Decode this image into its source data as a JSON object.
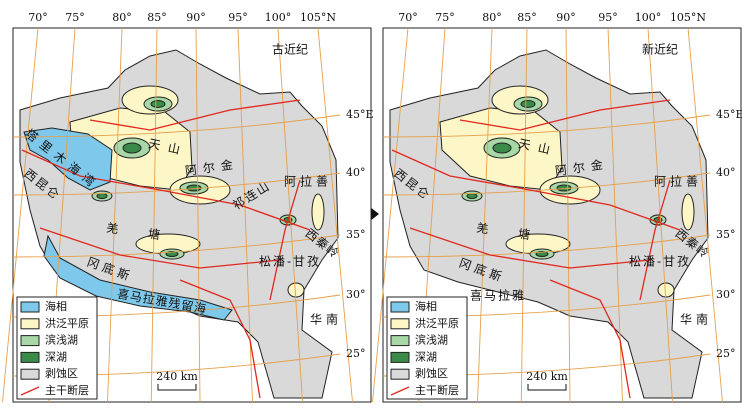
{
  "lon_labels": [
    "70°",
    "75°",
    "80°",
    "85°",
    "90°",
    "95°",
    "100°",
    "105°N"
  ],
  "lat_labels": [
    "45°E",
    "40°",
    "35°",
    "30°",
    "25°"
  ],
  "legend": [
    "海相",
    "洪泛平原",
    "滨浅湖",
    "深湖",
    "剥蚀区",
    "主干断层"
  ],
  "scale": "240 km",
  "panels": [
    {
      "title": "古近纪",
      "places": [
        "塔里木海湾",
        "天山",
        "阿尔金",
        "祁连山",
        "阿拉善",
        "西昆仑",
        "羌塘",
        "冈底斯",
        "松潘-甘孜",
        "西秦岭",
        "喜马拉雅残留海",
        "华南"
      ]
    },
    {
      "title": "新近纪",
      "places": [
        "天山",
        "阿尔金",
        "阿拉善",
        "西昆仑",
        "羌塘",
        "冈底斯",
        "松潘-甘孜",
        "西秦岭",
        "喜马拉雅",
        "华南"
      ]
    }
  ]
}
